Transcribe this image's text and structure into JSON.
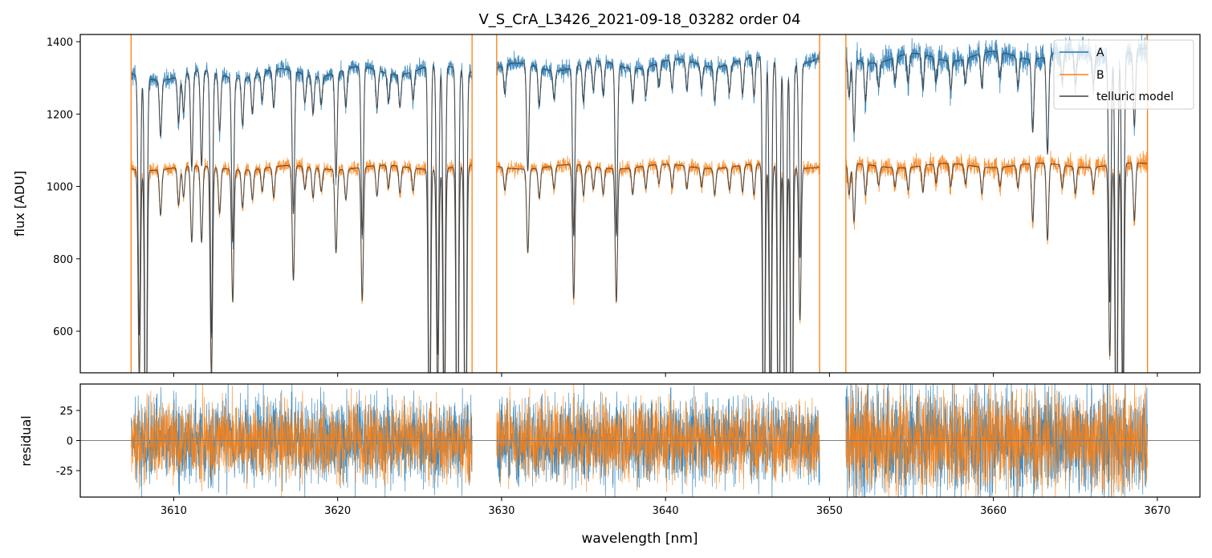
{
  "title": "V_S_CrA_L3426_2021-09-18_03282  order 04",
  "colors": {
    "A": "#1f77b4",
    "B": "#ff7f0e",
    "telluric": "#404040",
    "zero": "#7f7f7f"
  },
  "legend": {
    "position": "top-right",
    "items": [
      {
        "label": "A",
        "color": "#1f77b4"
      },
      {
        "label": "B",
        "color": "#ff7f0e"
      },
      {
        "label": "telluric model",
        "color": "#404040"
      }
    ]
  },
  "chart_data": [
    {
      "panel": "flux",
      "type": "line",
      "xlabel": "",
      "ylabel": "flux [ADU]",
      "xlim": [
        3604.3,
        3672.6
      ],
      "ylim": [
        485,
        1420
      ],
      "xticks": [
        3610,
        3620,
        3630,
        3640,
        3650,
        3660,
        3670
      ],
      "yticks": [
        600,
        800,
        1000,
        1200,
        1400
      ],
      "grid": false,
      "segments": [
        [
          3607.4,
          3628.2
        ],
        [
          3629.7,
          3649.4
        ],
        [
          3651.0,
          3669.4
        ]
      ],
      "series": [
        {
          "name": "A",
          "continuum": 1300,
          "continuum_end": 1375,
          "noise": 12
        },
        {
          "name": "B",
          "continuum": 1050,
          "continuum_end": 1060,
          "noise": 10
        },
        {
          "name": "telluric model"
        }
      ],
      "absorption_lines": [
        [
          3607.9,
          0.55
        ],
        [
          3608.3,
          0.9
        ],
        [
          3609.2,
          0.12
        ],
        [
          3610.3,
          0.1
        ],
        [
          3610.6,
          0.08
        ],
        [
          3611.1,
          0.2
        ],
        [
          3611.7,
          0.2
        ],
        [
          3612.3,
          0.55
        ],
        [
          3612.8,
          0.12
        ],
        [
          3613.6,
          0.35
        ],
        [
          3614.2,
          0.1
        ],
        [
          3614.8,
          0.08
        ],
        [
          3615.4,
          0.06
        ],
        [
          3616.1,
          0.08
        ],
        [
          3617.3,
          0.3
        ],
        [
          3618.0,
          0.06
        ],
        [
          3618.5,
          0.08
        ],
        [
          3619.0,
          0.06
        ],
        [
          3619.9,
          0.22
        ],
        [
          3620.5,
          0.08
        ],
        [
          3621.5,
          0.35
        ],
        [
          3622.4,
          0.08
        ],
        [
          3623.1,
          0.06
        ],
        [
          3623.8,
          0.07
        ],
        [
          3624.6,
          0.06
        ],
        [
          3625.6,
          0.85
        ],
        [
          3626.1,
          0.6
        ],
        [
          3626.5,
          0.75
        ],
        [
          3627.3,
          0.95
        ],
        [
          3627.8,
          0.95
        ],
        [
          3630.2,
          0.06
        ],
        [
          3631.6,
          0.22
        ],
        [
          3632.3,
          0.08
        ],
        [
          3633.2,
          0.06
        ],
        [
          3634.4,
          0.35
        ],
        [
          3635.0,
          0.08
        ],
        [
          3635.6,
          0.06
        ],
        [
          3636.2,
          0.07
        ],
        [
          3637.0,
          0.35
        ],
        [
          3638.0,
          0.07
        ],
        [
          3638.8,
          0.06
        ],
        [
          3639.6,
          0.05
        ],
        [
          3640.4,
          0.06
        ],
        [
          3641.3,
          0.06
        ],
        [
          3642.2,
          0.05
        ],
        [
          3643.0,
          0.07
        ],
        [
          3643.9,
          0.06
        ],
        [
          3644.7,
          0.07
        ],
        [
          3645.4,
          0.08
        ],
        [
          3646.0,
          0.9
        ],
        [
          3646.4,
          0.75
        ],
        [
          3646.9,
          0.95
        ],
        [
          3647.3,
          0.9
        ],
        [
          3647.7,
          0.95
        ],
        [
          3648.2,
          0.4
        ],
        [
          3651.2,
          0.08
        ],
        [
          3651.5,
          0.15
        ],
        [
          3652.2,
          0.08
        ],
        [
          3653.0,
          0.05
        ],
        [
          3654.0,
          0.05
        ],
        [
          3654.8,
          0.06
        ],
        [
          3655.7,
          0.07
        ],
        [
          3656.5,
          0.05
        ],
        [
          3657.4,
          0.06
        ],
        [
          3658.3,
          0.05
        ],
        [
          3659.3,
          0.07
        ],
        [
          3660.4,
          0.05
        ],
        [
          3661.5,
          0.06
        ],
        [
          3662.4,
          0.15
        ],
        [
          3663.3,
          0.2
        ],
        [
          3664.2,
          0.06
        ],
        [
          3665.0,
          0.07
        ],
        [
          3666.1,
          0.06
        ],
        [
          3667.1,
          0.5
        ],
        [
          3667.5,
          0.9
        ],
        [
          3667.9,
          0.7
        ],
        [
          3668.6,
          0.15
        ]
      ]
    },
    {
      "panel": "residual",
      "type": "line",
      "xlabel": "wavelength [nm]",
      "ylabel": "residual",
      "xlim": [
        3604.3,
        3672.6
      ],
      "ylim": [
        -47,
        47
      ],
      "xticks": [
        3610,
        3620,
        3630,
        3640,
        3650,
        3660,
        3670
      ],
      "yticks": [
        -25,
        0,
        25
      ],
      "grid": false,
      "zero_line": 0,
      "series": [
        {
          "name": "A",
          "noise_sd": 18
        },
        {
          "name": "B",
          "noise_sd": 16
        }
      ]
    }
  ]
}
